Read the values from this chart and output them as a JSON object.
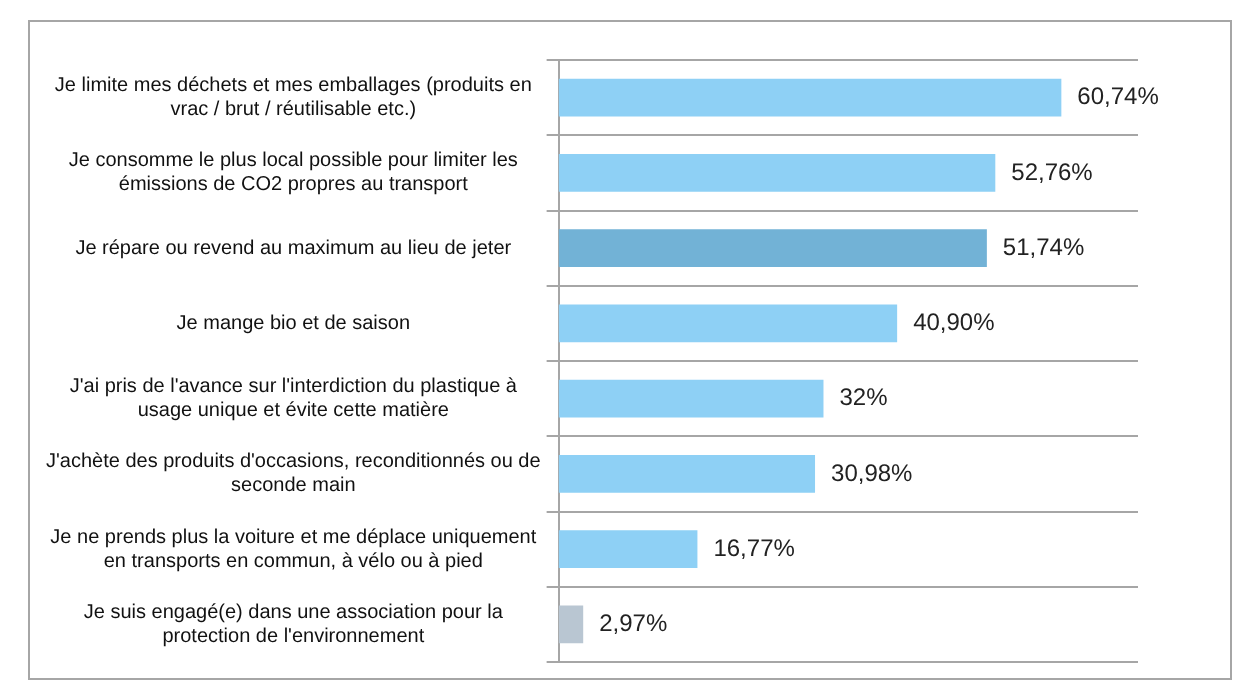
{
  "chart_data": {
    "type": "bar",
    "orientation": "horizontal",
    "categories": [
      "Je limite mes déchets et mes emballages (produits en vrac / brut / réutilisable etc.)",
      "Je consomme le plus local possible pour limiter les émissions de CO2 propres au transport",
      "Je répare ou revend au maximum au lieu de jeter",
      "Je mange bio et de saison",
      "J'ai pris de l'avance sur l'interdiction du plastique à usage unique et évite cette matière",
      "J'achète des produits d'occasions, reconditionnés ou de seconde main",
      "Je ne prends plus la voiture et me déplace uniquement en transports en commun, à vélo ou à pied",
      "Je suis engagé(e) dans une association pour la protection de l'environnement"
    ],
    "values": [
      60.74,
      52.76,
      51.74,
      40.9,
      32,
      30.98,
      16.77,
      2.97
    ],
    "colors": [
      "#8ed0f5",
      "#8ed0f5",
      "#72b2d6",
      "#8ed0f5",
      "#8ed0f5",
      "#8ed0f5",
      "#8ed0f5",
      "#b9c6d2"
    ],
    "value_labels": [
      "60,74%",
      "52,76%",
      "51,74%",
      "40,90%",
      "32%",
      "30,98%",
      "16,77%",
      "2,97%"
    ],
    "grid": "y",
    "legend": false
  }
}
